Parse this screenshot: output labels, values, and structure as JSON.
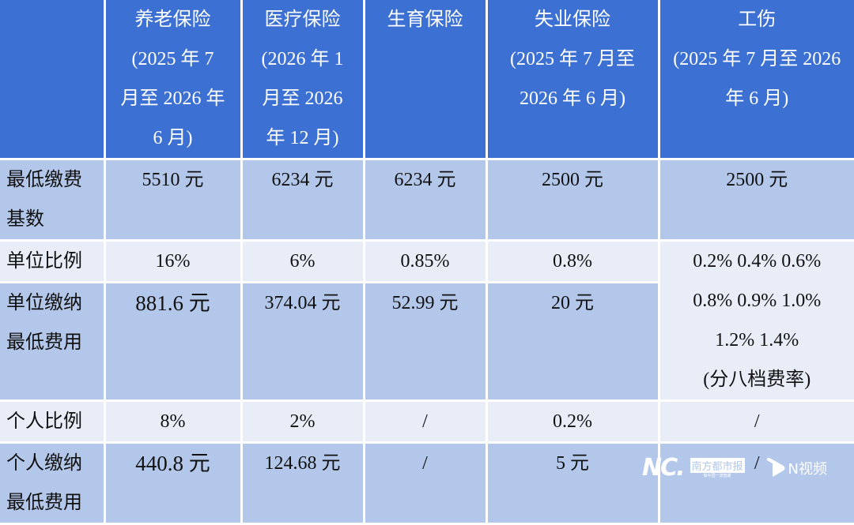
{
  "header": [
    "",
    "养老保险\n(2025 年 7\n月至 2026 年\n6 月)",
    "医疗保险\n(2026 年 1\n月至 2026\n年 12 月)",
    "生育保险",
    "失业保险\n(2025 年 7 月至\n2026 年 6 月)",
    "工伤\n(2025 年 7 月至 2026\n年 6 月)"
  ],
  "rows": [
    {
      "label": "最低缴费\n基数",
      "cells": [
        "5510 元",
        "6234 元",
        "6234 元",
        "2500 元",
        "2500 元"
      ]
    },
    {
      "label": "单位比例",
      "cells": [
        "16%",
        "6%",
        "0.85%",
        "0.8%",
        "0.2% 0.4% 0.6%\n0.8% 0.9% 1.0%\n1.2% 1.4%\n(分八档费率)"
      ]
    },
    {
      "label": "单位缴纳\n最低费用",
      "cells": [
        "881.6 元",
        "374.04 元",
        "52.99 元",
        "20 元"
      ]
    },
    {
      "label": "个人比例",
      "cells": [
        "8%",
        "2%",
        "/",
        "0.2%",
        "/"
      ]
    },
    {
      "label": "个人缴纳\n最低费用",
      "cells": [
        "440.8 元",
        "124.68 元",
        "/",
        "5 元",
        "/"
      ]
    }
  ],
  "watermark": {
    "logo": "NC.",
    "paper": "南方都市报",
    "slogan": "做中国一流智媒",
    "video": "N视频"
  },
  "colors": {
    "header": "#3d70d3",
    "row_dark": "#b3c7ea",
    "row_light": "#e8edf7"
  }
}
